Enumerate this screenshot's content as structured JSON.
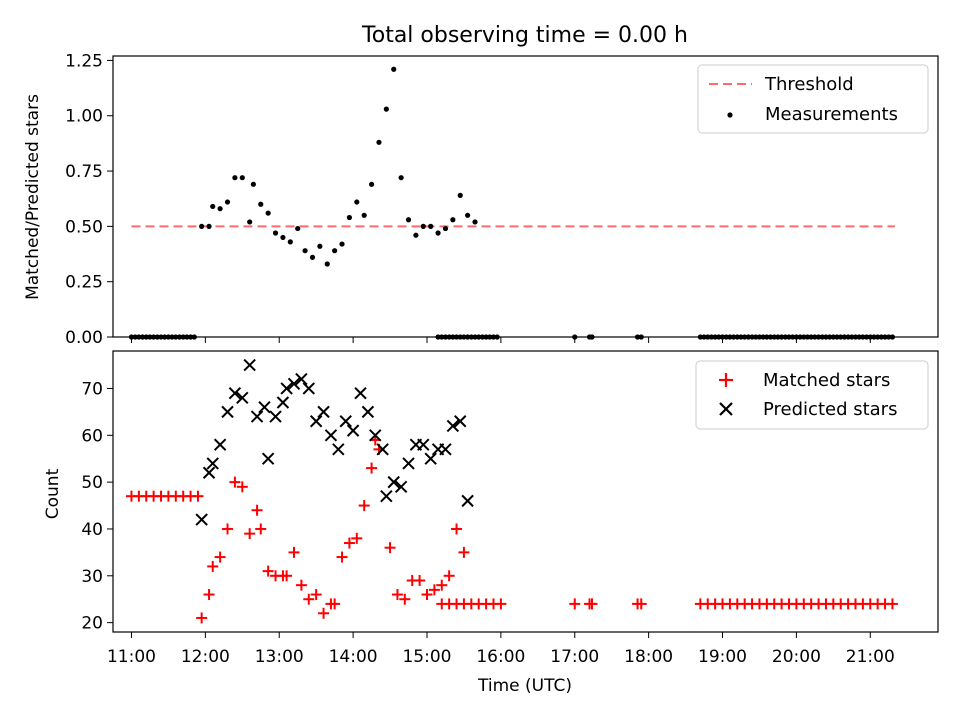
{
  "chart_data": [
    {
      "type": "scatter",
      "title": "Total observing time = 0.00 h",
      "xlabel": "",
      "ylabel": "Matched/Predicted stars",
      "xlim": [
        "10:45",
        "21:55"
      ],
      "ylim": [
        0,
        1.27
      ],
      "yticks": [
        "0.00",
        "0.25",
        "0.50",
        "0.75",
        "1.00",
        "1.25"
      ],
      "legend": {
        "placement": "top-right",
        "entries": [
          "Threshold",
          "Measurements"
        ]
      },
      "threshold": {
        "name": "Threshold",
        "value": 0.5,
        "x_start": "11:00",
        "x_end": "21:20",
        "color": "#ff6b6b"
      },
      "series": [
        {
          "name": "Measurements",
          "color": "#000000",
          "points": [
            [
              "11:00",
              0
            ],
            [
              "11:03",
              0
            ],
            [
              "11:06",
              0
            ],
            [
              "11:09",
              0
            ],
            [
              "11:12",
              0
            ],
            [
              "11:15",
              0
            ],
            [
              "11:18",
              0
            ],
            [
              "11:21",
              0
            ],
            [
              "11:24",
              0
            ],
            [
              "11:27",
              0
            ],
            [
              "11:30",
              0
            ],
            [
              "11:33",
              0
            ],
            [
              "11:36",
              0
            ],
            [
              "11:39",
              0
            ],
            [
              "11:42",
              0
            ],
            [
              "11:45",
              0
            ],
            [
              "11:48",
              0
            ],
            [
              "11:51",
              0
            ],
            [
              "11:57",
              0.5
            ],
            [
              "12:03",
              0.5
            ],
            [
              "12:06",
              0.59
            ],
            [
              "12:12",
              0.58
            ],
            [
              "12:18",
              0.61
            ],
            [
              "12:24",
              0.72
            ],
            [
              "12:30",
              0.72
            ],
            [
              "12:36",
              0.52
            ],
            [
              "12:39",
              0.69
            ],
            [
              "12:45",
              0.6
            ],
            [
              "12:51",
              0.56
            ],
            [
              "12:57",
              0.47
            ],
            [
              "13:03",
              0.45
            ],
            [
              "13:09",
              0.43
            ],
            [
              "13:15",
              0.49
            ],
            [
              "13:21",
              0.39
            ],
            [
              "13:27",
              0.36
            ],
            [
              "13:33",
              0.41
            ],
            [
              "13:39",
              0.33
            ],
            [
              "13:45",
              0.39
            ],
            [
              "13:51",
              0.42
            ],
            [
              "13:57",
              0.54
            ],
            [
              "14:03",
              0.61
            ],
            [
              "14:09",
              0.55
            ],
            [
              "14:15",
              0.69
            ],
            [
              "14:21",
              0.88
            ],
            [
              "14:27",
              1.03
            ],
            [
              "14:33",
              1.21
            ],
            [
              "14:39",
              0.72
            ],
            [
              "14:45",
              0.53
            ],
            [
              "14:51",
              0.46
            ],
            [
              "14:57",
              0.5
            ],
            [
              "15:03",
              0.5
            ],
            [
              "15:09",
              0.47
            ],
            [
              "15:15",
              0.49
            ],
            [
              "15:21",
              0.53
            ],
            [
              "15:27",
              0.64
            ],
            [
              "15:33",
              0.55
            ],
            [
              "15:39",
              0.52
            ],
            [
              "15:09",
              0
            ],
            [
              "15:12",
              0
            ],
            [
              "15:15",
              0
            ],
            [
              "15:18",
              0
            ],
            [
              "15:21",
              0
            ],
            [
              "15:24",
              0
            ],
            [
              "15:27",
              0
            ],
            [
              "15:30",
              0
            ],
            [
              "15:33",
              0
            ],
            [
              "15:36",
              0
            ],
            [
              "15:39",
              0
            ],
            [
              "15:42",
              0
            ],
            [
              "15:45",
              0
            ],
            [
              "15:48",
              0
            ],
            [
              "15:51",
              0
            ],
            [
              "15:54",
              0
            ],
            [
              "15:57",
              0
            ],
            [
              "17:00",
              0
            ],
            [
              "17:12",
              0
            ],
            [
              "17:14",
              0
            ],
            [
              "17:51",
              0
            ],
            [
              "17:54",
              0
            ],
            [
              "18:42",
              0
            ],
            [
              "18:45",
              0
            ],
            [
              "18:48",
              0
            ],
            [
              "18:51",
              0
            ],
            [
              "18:54",
              0
            ],
            [
              "18:57",
              0
            ],
            [
              "19:00",
              0
            ],
            [
              "19:03",
              0
            ],
            [
              "19:06",
              0
            ],
            [
              "19:09",
              0
            ],
            [
              "19:12",
              0
            ],
            [
              "19:15",
              0
            ],
            [
              "19:18",
              0
            ],
            [
              "19:21",
              0
            ],
            [
              "19:24",
              0
            ],
            [
              "19:27",
              0
            ],
            [
              "19:30",
              0
            ],
            [
              "19:33",
              0
            ],
            [
              "19:36",
              0
            ],
            [
              "19:39",
              0
            ],
            [
              "19:42",
              0
            ],
            [
              "19:45",
              0
            ],
            [
              "19:48",
              0
            ],
            [
              "19:51",
              0
            ],
            [
              "19:54",
              0
            ],
            [
              "19:57",
              0
            ],
            [
              "20:00",
              0
            ],
            [
              "20:03",
              0
            ],
            [
              "20:06",
              0
            ],
            [
              "20:09",
              0
            ],
            [
              "20:12",
              0
            ],
            [
              "20:15",
              0
            ],
            [
              "20:18",
              0
            ],
            [
              "20:21",
              0
            ],
            [
              "20:24",
              0
            ],
            [
              "20:27",
              0
            ],
            [
              "20:30",
              0
            ],
            [
              "20:33",
              0
            ],
            [
              "20:36",
              0
            ],
            [
              "20:39",
              0
            ],
            [
              "20:42",
              0
            ],
            [
              "20:45",
              0
            ],
            [
              "20:48",
              0
            ],
            [
              "20:51",
              0
            ],
            [
              "20:54",
              0
            ],
            [
              "20:57",
              0
            ],
            [
              "21:00",
              0
            ],
            [
              "21:03",
              0
            ],
            [
              "21:06",
              0
            ],
            [
              "21:09",
              0
            ],
            [
              "21:12",
              0
            ],
            [
              "21:15",
              0
            ],
            [
              "21:18",
              0
            ]
          ]
        }
      ]
    },
    {
      "type": "scatter",
      "title": "",
      "xlabel": "Time (UTC)",
      "ylabel": "Count",
      "xlim": [
        "10:45",
        "21:55"
      ],
      "ylim": [
        18,
        78
      ],
      "xticks": [
        "11:00",
        "12:00",
        "13:00",
        "14:00",
        "15:00",
        "16:00",
        "17:00",
        "18:00",
        "19:00",
        "20:00",
        "21:00"
      ],
      "yticks": [
        "20",
        "30",
        "40",
        "50",
        "60",
        "70"
      ],
      "legend": {
        "placement": "top-right",
        "entries": [
          "Matched stars",
          "Predicted stars"
        ]
      },
      "series": [
        {
          "name": "Matched stars",
          "marker": "+",
          "color": "#ff0000",
          "points": [
            [
              "11:00",
              47
            ],
            [
              "11:06",
              47
            ],
            [
              "11:12",
              47
            ],
            [
              "11:18",
              47
            ],
            [
              "11:24",
              47
            ],
            [
              "11:30",
              47
            ],
            [
              "11:36",
              47
            ],
            [
              "11:42",
              47
            ],
            [
              "11:48",
              47
            ],
            [
              "11:54",
              47
            ],
            [
              "11:57",
              21
            ],
            [
              "12:03",
              26
            ],
            [
              "12:06",
              32
            ],
            [
              "12:12",
              34
            ],
            [
              "12:18",
              40
            ],
            [
              "12:24",
              50
            ],
            [
              "12:30",
              49
            ],
            [
              "12:36",
              39
            ],
            [
              "12:42",
              44
            ],
            [
              "12:45",
              40
            ],
            [
              "12:51",
              31
            ],
            [
              "12:57",
              30
            ],
            [
              "13:03",
              30
            ],
            [
              "13:06",
              30
            ],
            [
              "13:12",
              35
            ],
            [
              "13:18",
              28
            ],
            [
              "13:24",
              25
            ],
            [
              "13:30",
              26
            ],
            [
              "13:36",
              22
            ],
            [
              "13:42",
              24
            ],
            [
              "13:45",
              24
            ],
            [
              "13:51",
              34
            ],
            [
              "13:57",
              37
            ],
            [
              "14:03",
              38
            ],
            [
              "14:09",
              45
            ],
            [
              "14:15",
              53
            ],
            [
              "14:18",
              59
            ],
            [
              "14:21",
              57
            ],
            [
              "14:30",
              36
            ],
            [
              "14:36",
              26
            ],
            [
              "14:42",
              25
            ],
            [
              "14:48",
              29
            ],
            [
              "14:54",
              29
            ],
            [
              "15:00",
              26
            ],
            [
              "15:06",
              27
            ],
            [
              "15:12",
              28
            ],
            [
              "15:18",
              30
            ],
            [
              "15:24",
              40
            ],
            [
              "15:30",
              35
            ],
            [
              "15:12",
              24
            ],
            [
              "15:18",
              24
            ],
            [
              "15:24",
              24
            ],
            [
              "15:30",
              24
            ],
            [
              "15:36",
              24
            ],
            [
              "15:42",
              24
            ],
            [
              "15:48",
              24
            ],
            [
              "15:54",
              24
            ],
            [
              "16:00",
              24
            ],
            [
              "17:00",
              24
            ],
            [
              "17:12",
              24
            ],
            [
              "17:14",
              24
            ],
            [
              "17:51",
              24
            ],
            [
              "17:54",
              24
            ],
            [
              "18:42",
              24
            ],
            [
              "18:48",
              24
            ],
            [
              "18:54",
              24
            ],
            [
              "19:00",
              24
            ],
            [
              "19:06",
              24
            ],
            [
              "19:12",
              24
            ],
            [
              "19:18",
              24
            ],
            [
              "19:24",
              24
            ],
            [
              "19:30",
              24
            ],
            [
              "19:36",
              24
            ],
            [
              "19:42",
              24
            ],
            [
              "19:48",
              24
            ],
            [
              "19:54",
              24
            ],
            [
              "20:00",
              24
            ],
            [
              "20:06",
              24
            ],
            [
              "20:12",
              24
            ],
            [
              "20:18",
              24
            ],
            [
              "20:24",
              24
            ],
            [
              "20:30",
              24
            ],
            [
              "20:36",
              24
            ],
            [
              "20:42",
              24
            ],
            [
              "20:48",
              24
            ],
            [
              "20:54",
              24
            ],
            [
              "21:00",
              24
            ],
            [
              "21:06",
              24
            ],
            [
              "21:12",
              24
            ],
            [
              "21:18",
              24
            ]
          ]
        },
        {
          "name": "Predicted stars",
          "marker": "x",
          "color": "#000000",
          "points": [
            [
              "11:57",
              42
            ],
            [
              "12:03",
              52
            ],
            [
              "12:06",
              54
            ],
            [
              "12:12",
              58
            ],
            [
              "12:18",
              65
            ],
            [
              "12:24",
              69
            ],
            [
              "12:30",
              68
            ],
            [
              "12:36",
              75
            ],
            [
              "12:42",
              64
            ],
            [
              "12:48",
              66
            ],
            [
              "12:51",
              55
            ],
            [
              "12:57",
              64
            ],
            [
              "13:03",
              67
            ],
            [
              "13:06",
              70
            ],
            [
              "13:12",
              71
            ],
            [
              "13:18",
              72
            ],
            [
              "13:24",
              70
            ],
            [
              "13:30",
              63
            ],
            [
              "13:36",
              65
            ],
            [
              "13:42",
              60
            ],
            [
              "13:48",
              57
            ],
            [
              "13:54",
              63
            ],
            [
              "14:00",
              61
            ],
            [
              "14:06",
              69
            ],
            [
              "14:12",
              65
            ],
            [
              "14:18",
              60
            ],
            [
              "14:24",
              57
            ],
            [
              "14:27",
              47
            ],
            [
              "14:33",
              50
            ],
            [
              "14:39",
              49
            ],
            [
              "14:45",
              54
            ],
            [
              "14:51",
              58
            ],
            [
              "14:57",
              58
            ],
            [
              "15:03",
              55
            ],
            [
              "15:09",
              57
            ],
            [
              "15:15",
              57
            ],
            [
              "15:21",
              62
            ],
            [
              "15:27",
              63
            ],
            [
              "15:33",
              46
            ]
          ]
        }
      ]
    }
  ]
}
